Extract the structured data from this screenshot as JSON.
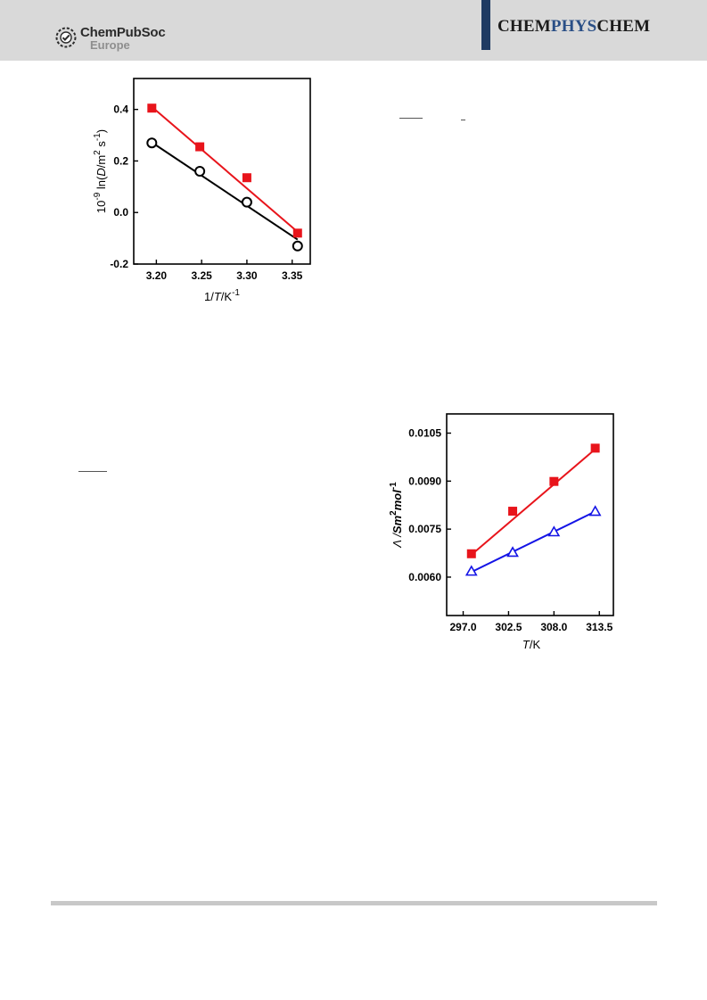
{
  "header": {
    "publisher_name": "ChemPubSoc",
    "publisher_region": "Europe",
    "journal_prefix": "CHEM",
    "journal_accent": "PHYS",
    "journal_suffix": "CHEM",
    "colors": {
      "band": "#d9d9d9",
      "journal_bar": "#1f3a62",
      "accent": "#2a4f86"
    }
  },
  "chart_data": [
    {
      "type": "scatter",
      "xlabel_prefix": "1/",
      "xlabel_italic": "T",
      "xlabel_unit": "/K",
      "xlabel_exp": "-1",
      "ylabel_prefix": "10",
      "ylabel_prefix_exp": "-9",
      "ylabel_main": " ln(",
      "ylabel_italic": "D",
      "ylabel_unit": "/m",
      "ylabel_unit_exp": "2",
      "ylabel_unit2": " s",
      "ylabel_unit2_exp": "-1",
      "ylabel_close": ")",
      "xlim": [
        3.175,
        3.37
      ],
      "ylim": [
        -0.2,
        0.52
      ],
      "xticks": [
        "3.20",
        "3.25",
        "3.30",
        "3.35"
      ],
      "xtick_values": [
        3.2,
        3.25,
        3.3,
        3.35
      ],
      "yticks": [
        "-0.2",
        "0.0",
        "0.2",
        "0.4"
      ],
      "ytick_values": [
        -0.2,
        0.0,
        0.2,
        0.4
      ],
      "grid": false,
      "series": [
        {
          "marker": "filled-square",
          "color": "#e8141b",
          "x": [
            3.195,
            3.248,
            3.3,
            3.356
          ],
          "y": [
            0.405,
            0.255,
            0.135,
            -0.08
          ],
          "fit": [
            [
              3.195,
              0.41
            ],
            [
              3.356,
              -0.075
            ]
          ]
        },
        {
          "marker": "open-circle",
          "color": "#000000",
          "x": [
            3.195,
            3.248,
            3.3,
            3.356
          ],
          "y": [
            0.27,
            0.16,
            0.04,
            -0.13
          ],
          "fit": [
            [
              3.195,
              0.272
            ],
            [
              3.356,
              -0.105
            ]
          ]
        }
      ]
    },
    {
      "type": "scatter",
      "xlabel_italic": "T",
      "xlabel_unit": "/K",
      "ylabel_lambda": "Λ /",
      "ylabel_italic": "Sm",
      "ylabel_exp1": "2",
      "ylabel_italic2": "mol",
      "ylabel_exp2": "-1",
      "xlim": [
        295.0,
        315.2
      ],
      "ylim": [
        0.0048,
        0.0111
      ],
      "xticks": [
        "297.0",
        "302.5",
        "308.0",
        "313.5"
      ],
      "xtick_values": [
        297.0,
        302.5,
        308.0,
        313.5
      ],
      "yticks": [
        "0.0060",
        "0.0075",
        "0.0090",
        "0.0105"
      ],
      "ytick_values": [
        0.006,
        0.0075,
        0.009,
        0.0105
      ],
      "grid": false,
      "series": [
        {
          "marker": "filled-square",
          "color": "#e8141b",
          "x": [
            298.0,
            303.0,
            308.0,
            313.0
          ],
          "y": [
            0.00673,
            0.00806,
            0.00899,
            0.01003
          ],
          "fit": [
            [
              298.0,
              0.0067
            ],
            [
              313.0,
              0.01
            ]
          ]
        },
        {
          "marker": "open-triangle",
          "color": "#1414e6",
          "x": [
            298.0,
            303.0,
            308.0,
            313.0
          ],
          "y": [
            0.00618,
            0.00677,
            0.00741,
            0.00805
          ],
          "fit": [
            [
              298.0,
              0.00616
            ],
            [
              313.0,
              0.00805
            ]
          ]
        }
      ]
    }
  ]
}
